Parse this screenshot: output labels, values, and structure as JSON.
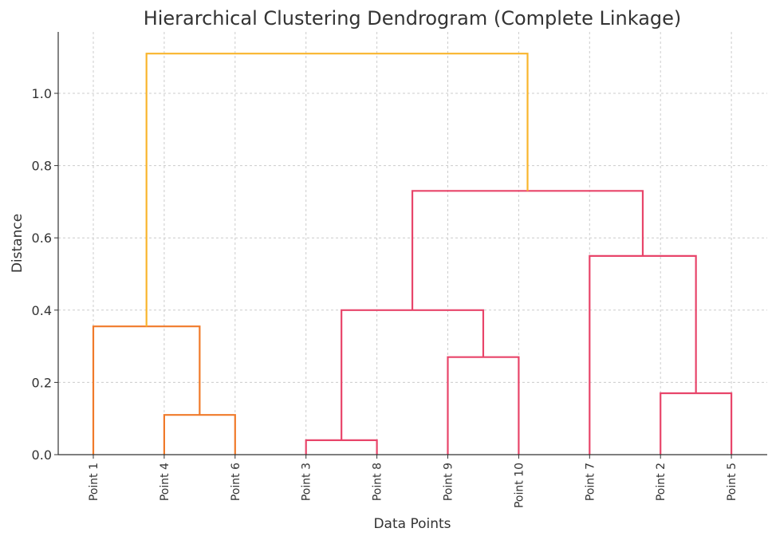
{
  "chart_data": {
    "type": "dendrogram",
    "title": "Hierarchical Clustering Dendrogram (Complete Linkage)",
    "xlabel": "Data Points",
    "ylabel": "Distance",
    "ylim": [
      0,
      1.17
    ],
    "y_ticks": [
      {
        "value": 0.0,
        "label": "0.0"
      },
      {
        "value": 0.2,
        "label": "0.2"
      },
      {
        "value": 0.4,
        "label": "0.4"
      },
      {
        "value": 0.6,
        "label": "0.6"
      },
      {
        "value": 0.8,
        "label": "0.8"
      },
      {
        "value": 1.0,
        "label": "1.0"
      }
    ],
    "grid": true,
    "leaves": [
      "Point 1",
      "Point 4",
      "Point 6",
      "Point 3",
      "Point 8",
      "Point 9",
      "Point 10",
      "Point 7",
      "Point 2",
      "Point 5"
    ],
    "colors": {
      "cluster_a": "#f07a2a",
      "cluster_b": "#e8456a",
      "root": "#f9b52d"
    },
    "merges": [
      {
        "left": "Point 4",
        "right": "Point 6",
        "height": 0.11,
        "color": "cluster_a"
      },
      {
        "left": "Point 1",
        "right": "m0",
        "height": 0.355,
        "color": "cluster_a"
      },
      {
        "left": "Point 3",
        "right": "Point 8",
        "height": 0.04,
        "color": "cluster_b"
      },
      {
        "left": "Point 9",
        "right": "Point 10",
        "height": 0.27,
        "color": "cluster_b"
      },
      {
        "left": "m2",
        "right": "m3",
        "height": 0.4,
        "color": "cluster_b"
      },
      {
        "left": "Point 2",
        "right": "Point 5",
        "height": 0.17,
        "color": "cluster_b"
      },
      {
        "left": "Point 7",
        "right": "m5",
        "height": 0.55,
        "color": "cluster_b"
      },
      {
        "left": "m4",
        "right": "m6",
        "height": 0.73,
        "color": "cluster_b"
      },
      {
        "left": "m1",
        "right": "m7",
        "height": 1.11,
        "color": "root"
      }
    ]
  }
}
